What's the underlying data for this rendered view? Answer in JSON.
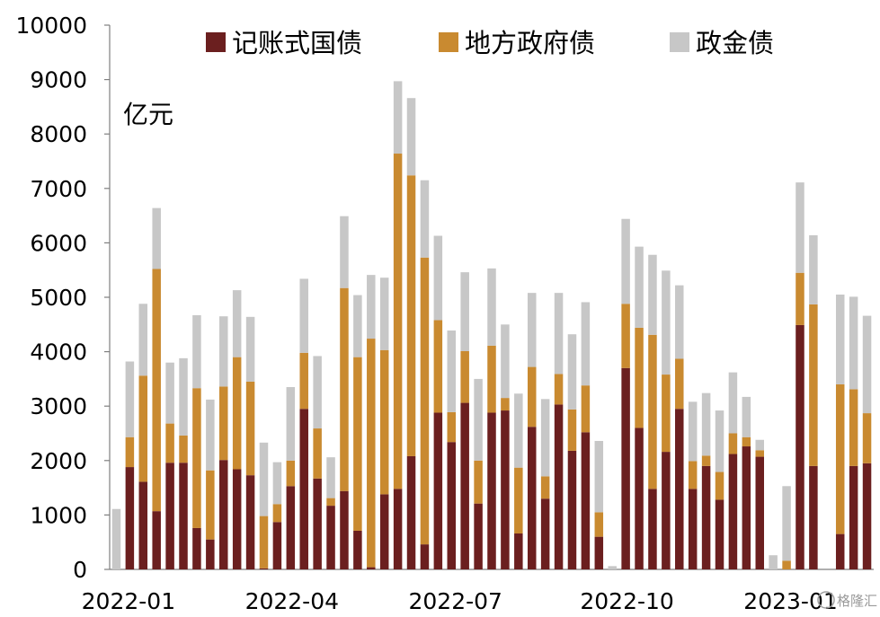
{
  "chart_data": {
    "type": "bar",
    "stacked": true,
    "unit_label": "亿元",
    "ylim": [
      0,
      10000
    ],
    "yticks": [
      0,
      1000,
      2000,
      3000,
      4000,
      5000,
      6000,
      7000,
      8000,
      9000,
      10000
    ],
    "x_tick_labels": [
      "2022-01",
      "2022-04",
      "2022-07",
      "2022-10",
      "2023-01"
    ],
    "legend": {
      "placement": "top"
    },
    "colors": [
      "#6b1f1f",
      "#c98a30",
      "#c7c7c7"
    ],
    "series": [
      {
        "name": "记账式国债",
        "values": [
          0,
          1880,
          1610,
          1070,
          1960,
          1960,
          760,
          550,
          2010,
          1840,
          1730,
          20,
          870,
          1530,
          2950,
          1670,
          1170,
          1440,
          710,
          40,
          1380,
          1480,
          2080,
          460,
          2880,
          2340,
          3060,
          1210,
          2880,
          2920,
          660,
          2620,
          1300,
          3030,
          2180,
          2520,
          600,
          0,
          3700,
          2600,
          1480,
          2160,
          2950,
          1480,
          1900,
          1280,
          2120,
          2260,
          2070,
          0,
          0,
          4490,
          1900,
          0,
          650,
          1900,
          1950
        ]
      },
      {
        "name": "地方政府债",
        "values": [
          0,
          550,
          1950,
          4450,
          720,
          500,
          2570,
          1270,
          1350,
          2060,
          1720,
          960,
          330,
          470,
          1030,
          920,
          140,
          3730,
          3190,
          4200,
          2650,
          6160,
          5160,
          5270,
          1700,
          550,
          950,
          790,
          1230,
          230,
          1210,
          1100,
          410,
          560,
          760,
          860,
          450,
          0,
          1180,
          1840,
          2830,
          1420,
          920,
          510,
          190,
          510,
          380,
          170,
          120,
          0,
          160,
          960,
          2970,
          0,
          2750,
          1410,
          920
        ]
      },
      {
        "name": "政金债",
        "values": [
          1110,
          1390,
          1320,
          1120,
          1120,
          1420,
          1340,
          1300,
          1290,
          1230,
          1190,
          1350,
          770,
          1350,
          1360,
          1330,
          750,
          1320,
          1140,
          1170,
          1330,
          1330,
          1420,
          1420,
          1550,
          1500,
          1450,
          1500,
          1420,
          1350,
          1360,
          1360,
          1420,
          1490,
          1380,
          1530,
          1310,
          60,
          1560,
          1490,
          1470,
          1910,
          1350,
          1090,
          1150,
          1130,
          1120,
          740,
          190,
          260,
          1370,
          1660,
          1270,
          0,
          1650,
          1700,
          1790
        ]
      }
    ],
    "watermark": "格隆汇"
  }
}
